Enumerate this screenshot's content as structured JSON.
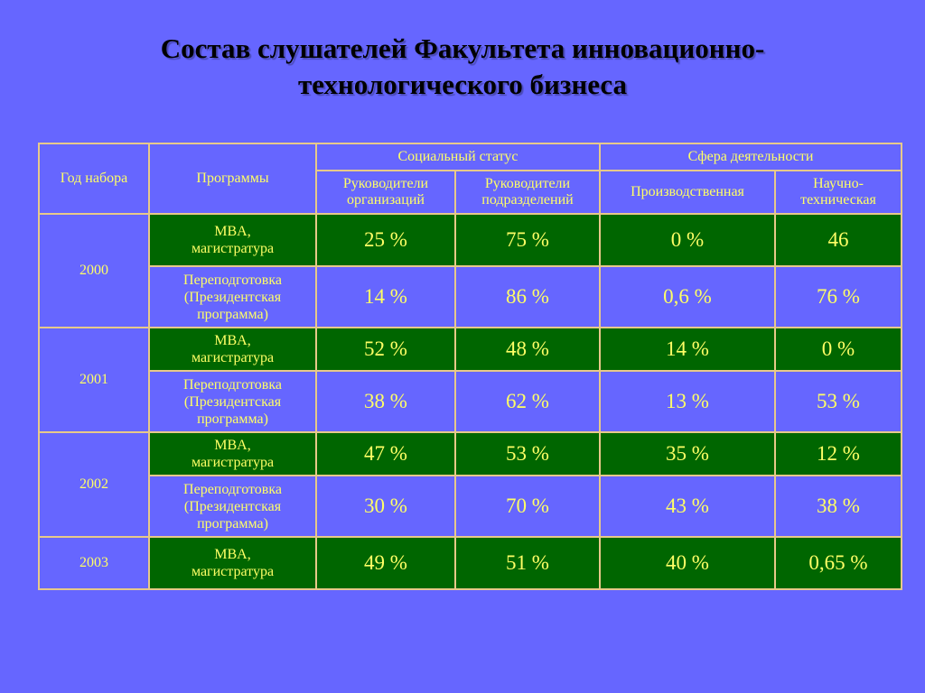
{
  "title": {
    "line1": "Состав слушателей Факультета инновационно-",
    "line2": "технологического бизнеса"
  },
  "header": {
    "year": "Год набора",
    "programs": "Программы",
    "social_status": "Социальный статус",
    "sphere": "Сфера деятельности",
    "heads_org_1": "Руководители",
    "heads_org_2": "организаций",
    "heads_dept_1": "Руководители",
    "heads_dept_2": "подразделений",
    "production": "Производственная",
    "sci_tech_1": "Научно-",
    "sci_tech_2": "техническая"
  },
  "programs": {
    "mba_1": "MBA,",
    "mba_2": "магистратура",
    "retrain_1": "Переподготовка",
    "retrain_2": "(Президентская",
    "retrain_3": "программа)"
  },
  "rows": [
    {
      "year": "2000",
      "program": "mba",
      "values": [
        "25 %",
        "75 %",
        "0 %",
        "46"
      ]
    },
    {
      "year": "2000",
      "program": "retrain",
      "values": [
        "14 %",
        "86 %",
        "0,6 %",
        "76 %"
      ]
    },
    {
      "year": "2001",
      "program": "mba",
      "values": [
        "52 %",
        "48 %",
        "14 %",
        "0 %"
      ]
    },
    {
      "year": "2001",
      "program": "retrain",
      "values": [
        "38 %",
        "62 %",
        "13 %",
        "53 %"
      ]
    },
    {
      "year": "2002",
      "program": "mba",
      "values": [
        "47 %",
        "53 %",
        "35 %",
        "12 %"
      ]
    },
    {
      "year": "2002",
      "program": "retrain",
      "values": [
        "30 %",
        "70 %",
        "43 %",
        "38 %"
      ]
    },
    {
      "year": "2003",
      "program": "mba",
      "values": [
        "49 %",
        "51 %",
        "40 %",
        "0,65 %"
      ]
    }
  ],
  "colors": {
    "background": "#6666ff",
    "text": "#ffff66",
    "highlight": "#006600",
    "border": "#e7c98a"
  }
}
